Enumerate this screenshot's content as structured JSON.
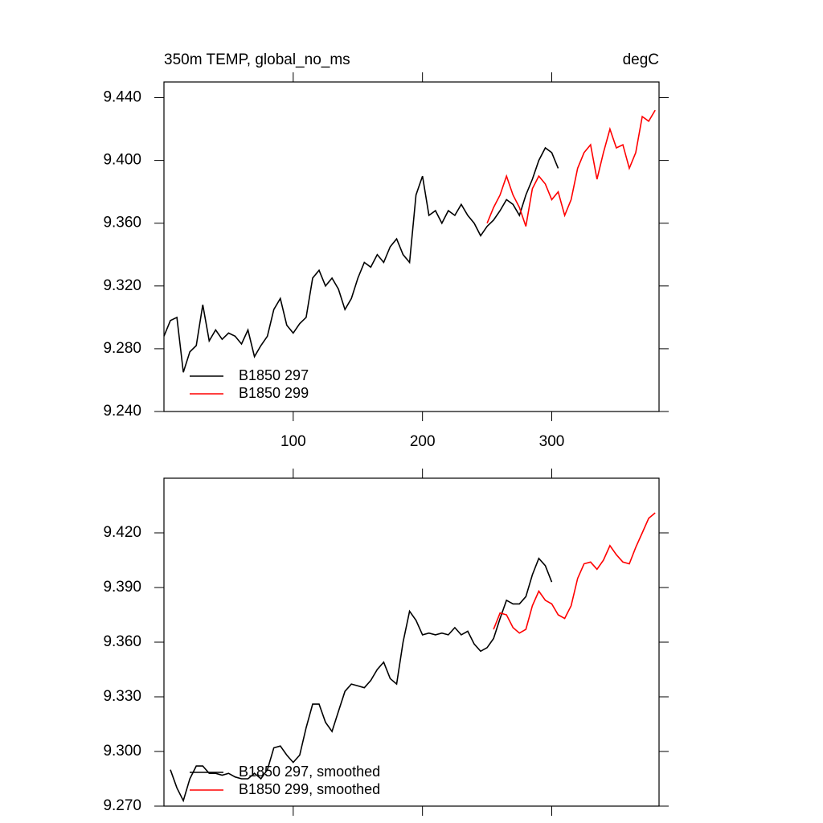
{
  "chart_data": [
    {
      "type": "line",
      "title": "350m TEMP, global_no_ms",
      "units": "degC",
      "xlim": [
        0,
        383
      ],
      "xticks": [
        100,
        200,
        300
      ],
      "ylim": [
        9.24,
        9.45
      ],
      "yticks": [
        {
          "value": 9.24,
          "label": "9.240"
        },
        {
          "value": 9.28,
          "label": "9.280"
        },
        {
          "value": 9.32,
          "label": "9.320"
        },
        {
          "value": 9.36,
          "label": "9.360"
        },
        {
          "value": 9.4,
          "label": "9.400"
        },
        {
          "value": 9.44,
          "label": "9.440"
        }
      ],
      "series": [
        {
          "name": "B1850 297",
          "color": "#000000",
          "x": [
            0,
            5,
            10,
            15,
            20,
            25,
            30,
            35,
            40,
            45,
            50,
            55,
            60,
            65,
            70,
            75,
            80,
            85,
            90,
            95,
            100,
            105,
            110,
            115,
            120,
            125,
            130,
            135,
            140,
            145,
            150,
            155,
            160,
            165,
            170,
            175,
            180,
            185,
            190,
            195,
            200,
            205,
            210,
            215,
            220,
            225,
            230,
            235,
            240,
            245,
            250,
            255,
            260,
            265,
            270,
            275,
            280,
            285,
            290,
            295,
            300,
            305
          ],
          "values": [
            9.288,
            9.298,
            9.3,
            9.265,
            9.278,
            9.282,
            9.308,
            9.285,
            9.292,
            9.286,
            9.29,
            9.288,
            9.283,
            9.292,
            9.275,
            9.282,
            9.288,
            9.305,
            9.312,
            9.295,
            9.29,
            9.296,
            9.3,
            9.325,
            9.33,
            9.32,
            9.325,
            9.318,
            9.305,
            9.312,
            9.325,
            9.335,
            9.332,
            9.34,
            9.335,
            9.345,
            9.35,
            9.34,
            9.335,
            9.378,
            9.39,
            9.365,
            9.368,
            9.36,
            9.368,
            9.365,
            9.372,
            9.365,
            9.36,
            9.352,
            9.358,
            9.362,
            9.368,
            9.375,
            9.372,
            9.365,
            9.378,
            9.388,
            9.4,
            9.408,
            9.405,
            9.395
          ]
        },
        {
          "name": "B1850 299",
          "color": "#ff0000",
          "x": [
            250,
            255,
            260,
            265,
            270,
            275,
            280,
            285,
            290,
            295,
            300,
            305,
            310,
            315,
            320,
            325,
            330,
            335,
            340,
            345,
            350,
            355,
            360,
            365,
            370,
            375,
            380
          ],
          "values": [
            9.36,
            9.37,
            9.378,
            9.39,
            9.378,
            9.37,
            9.358,
            9.382,
            9.39,
            9.385,
            9.375,
            9.38,
            9.365,
            9.375,
            9.395,
            9.405,
            9.41,
            9.388,
            9.405,
            9.42,
            9.408,
            9.41,
            9.395,
            9.405,
            9.428,
            9.425,
            9.432
          ]
        }
      ]
    },
    {
      "type": "line",
      "xlim": [
        0,
        383
      ],
      "xticks": [
        100,
        200,
        300
      ],
      "ylim": [
        9.27,
        9.45
      ],
      "yticks": [
        {
          "value": 9.27,
          "label": "9.270"
        },
        {
          "value": 9.3,
          "label": "9.300"
        },
        {
          "value": 9.33,
          "label": "9.330"
        },
        {
          "value": 9.36,
          "label": "9.360"
        },
        {
          "value": 9.39,
          "label": "9.390"
        },
        {
          "value": 9.42,
          "label": "9.420"
        }
      ],
      "series": [
        {
          "name": "B1850 297, smoothed",
          "color": "#000000",
          "x": [
            5,
            10,
            15,
            20,
            25,
            30,
            35,
            40,
            45,
            50,
            55,
            60,
            65,
            70,
            75,
            80,
            85,
            90,
            95,
            100,
            105,
            110,
            115,
            120,
            125,
            130,
            135,
            140,
            145,
            150,
            155,
            160,
            165,
            170,
            175,
            180,
            185,
            190,
            195,
            200,
            205,
            210,
            215,
            220,
            225,
            230,
            235,
            240,
            245,
            250,
            255,
            260,
            265,
            270,
            275,
            280,
            285,
            290,
            295,
            300
          ],
          "values": [
            9.29,
            9.28,
            9.273,
            9.285,
            9.292,
            9.292,
            9.288,
            9.288,
            9.287,
            9.288,
            9.286,
            9.285,
            9.285,
            9.288,
            9.285,
            9.29,
            9.302,
            9.303,
            9.298,
            9.294,
            9.298,
            9.313,
            9.326,
            9.326,
            9.316,
            9.311,
            9.322,
            9.333,
            9.337,
            9.336,
            9.335,
            9.339,
            9.345,
            9.349,
            9.34,
            9.337,
            9.36,
            9.377,
            9.372,
            9.364,
            9.365,
            9.364,
            9.365,
            9.364,
            9.368,
            9.364,
            9.366,
            9.359,
            9.355,
            9.357,
            9.362,
            9.373,
            9.383,
            9.381,
            9.381,
            9.385,
            9.397,
            9.406,
            9.402,
            9.393
          ]
        },
        {
          "name": "B1850 299, smoothed",
          "color": "#ff0000",
          "x": [
            255,
            260,
            265,
            270,
            275,
            280,
            285,
            290,
            295,
            300,
            305,
            310,
            315,
            320,
            325,
            330,
            335,
            340,
            345,
            350,
            355,
            360,
            365,
            370,
            375,
            380
          ],
          "values": [
            9.367,
            9.376,
            9.375,
            9.368,
            9.365,
            9.367,
            9.38,
            9.388,
            9.383,
            9.381,
            9.375,
            9.373,
            9.38,
            9.395,
            9.403,
            9.404,
            9.4,
            9.405,
            9.413,
            9.408,
            9.404,
            9.403,
            9.412,
            9.42,
            9.428,
            9.431
          ]
        }
      ]
    }
  ]
}
